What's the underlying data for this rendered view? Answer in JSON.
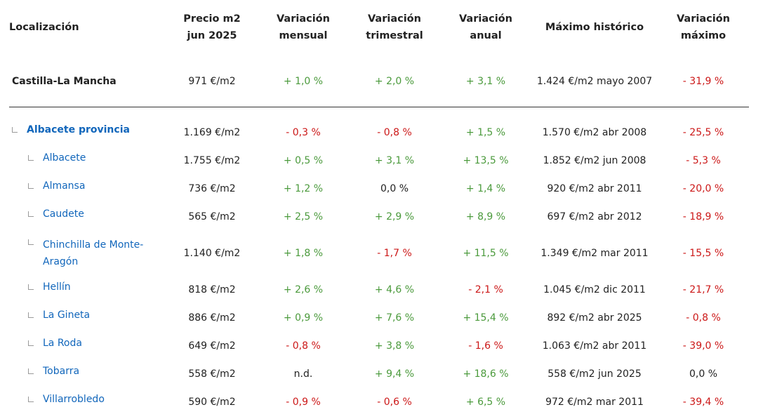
{
  "header": {
    "location": "Localización",
    "price": [
      "Precio m2",
      "jun 2025"
    ],
    "monthly": [
      "Variación",
      "mensual"
    ],
    "quarterly": [
      "Variación",
      "trimestral"
    ],
    "annual": [
      "Variación",
      "anual"
    ],
    "max_hist": "Máximo histórico",
    "max_var": [
      "Variación",
      "máximo"
    ]
  },
  "region": {
    "name": "Castilla-La Mancha",
    "price": "971 €/m2",
    "monthly": "+ 1,0 %",
    "quarterly": "+ 2,0 %",
    "annual": "+ 3,1 %",
    "max_hist": "1.424 €/m2 mayo 2007",
    "max_var": "- 31,9 %"
  },
  "rows": [
    {
      "name": "Albacete provincia",
      "price": "1.169 €/m2",
      "monthly": "- 0,3 %",
      "quarterly": "- 0,8 %",
      "annual": "+ 1,5 %",
      "max_hist": "1.570 €/m2 abr 2008",
      "max_var": "- 25,5 %"
    },
    {
      "name": "Albacete",
      "price": "1.755 €/m2",
      "monthly": "+ 0,5 %",
      "quarterly": "+ 3,1 %",
      "annual": "+ 13,5 %",
      "max_hist": "1.852 €/m2 jun 2008",
      "max_var": "- 5,3 %"
    },
    {
      "name": "Almansa",
      "price": "736 €/m2",
      "monthly": "+ 1,2 %",
      "quarterly": "0,0 %",
      "annual": "+ 1,4 %",
      "max_hist": "920 €/m2 abr 2011",
      "max_var": "- 20,0 %"
    },
    {
      "name": "Caudete",
      "price": "565 €/m2",
      "monthly": "+ 2,5 %",
      "quarterly": "+ 2,9 %",
      "annual": "+ 8,9 %",
      "max_hist": "697 €/m2 abr 2012",
      "max_var": "- 18,9 %"
    },
    {
      "name_l1": "Chinchilla de Monte-",
      "name_l2": "Aragón",
      "price": "1.140 €/m2",
      "monthly": "+ 1,8 %",
      "quarterly": "- 1,7 %",
      "annual": "+ 11,5 %",
      "max_hist": "1.349 €/m2 mar 2011",
      "max_var": "- 15,5 %"
    },
    {
      "name": "Hellín",
      "price": "818 €/m2",
      "monthly": "+ 2,6 %",
      "quarterly": "+ 4,6 %",
      "annual": "- 2,1 %",
      "max_hist": "1.045 €/m2 dic 2011",
      "max_var": "- 21,7 %"
    },
    {
      "name": "La Gineta",
      "price": "886 €/m2",
      "monthly": "+ 0,9 %",
      "quarterly": "+ 7,6 %",
      "annual": "+ 15,4 %",
      "max_hist": "892 €/m2 abr 2025",
      "max_var": "- 0,8 %"
    },
    {
      "name": "La Roda",
      "price": "649 €/m2",
      "monthly": "- 0,8 %",
      "quarterly": "+ 3,8 %",
      "annual": "- 1,6 %",
      "max_hist": "1.063 €/m2 abr 2011",
      "max_var": "- 39,0 %"
    },
    {
      "name": "Tobarra",
      "price": "558 €/m2",
      "monthly": "n.d.",
      "quarterly": "+ 9,4 %",
      "annual": "+ 18,6 %",
      "max_hist": "558 €/m2 jun 2025",
      "max_var": "0,0 %"
    },
    {
      "name": "Villarrobledo",
      "price": "590 €/m2",
      "monthly": "- 0,9 %",
      "quarterly": "- 0,6 %",
      "annual": "+ 6,5 %",
      "max_hist": "972 €/m2 mar 2011",
      "max_var": "- 39,4 %"
    }
  ],
  "colors": {
    "positive": "#4b9a3c",
    "negative": "#cc1818",
    "link": "#1166bb",
    "divider": "#333333"
  },
  "icons": {
    "tree_branch": "tree-branch-icon"
  }
}
